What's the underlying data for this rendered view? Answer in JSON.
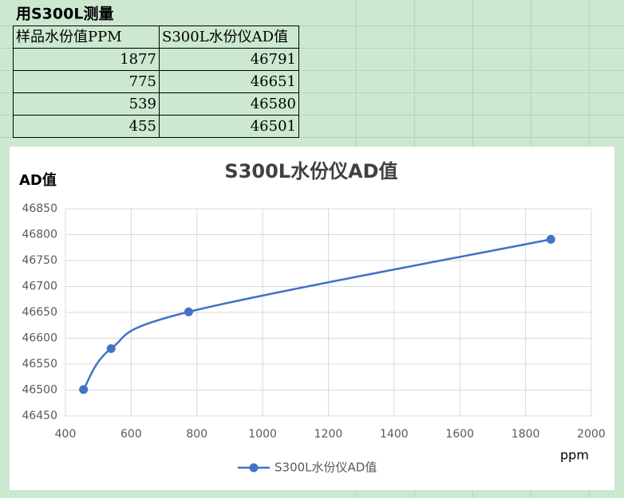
{
  "table": {
    "title": "用S300L测量",
    "columns": [
      "样品水份值PPM",
      "S300L水份仪AD值"
    ],
    "rows": [
      [
        1877,
        46791
      ],
      [
        775,
        46651
      ],
      [
        539,
        46580
      ],
      [
        455,
        46501
      ]
    ]
  },
  "chart_data": {
    "type": "line",
    "title": "S300L水份仪AD值",
    "y_label": "AD值",
    "x_label": "ppm",
    "x": [
      1877,
      775,
      539,
      455
    ],
    "series": [
      {
        "name": "S300L水份仪AD值",
        "color": "#4472c4",
        "values": [
          46791,
          46651,
          46580,
          46501
        ]
      }
    ],
    "xlim": [
      400,
      2000
    ],
    "xticks": [
      400,
      600,
      800,
      1000,
      1200,
      1400,
      1600,
      1800,
      2000
    ],
    "ylim": [
      46450,
      46850
    ],
    "yticks": [
      46450,
      46500,
      46550,
      46600,
      46650,
      46700,
      46750,
      46800,
      46850
    ],
    "grid": true,
    "smooth": true,
    "legend": "bottom"
  }
}
